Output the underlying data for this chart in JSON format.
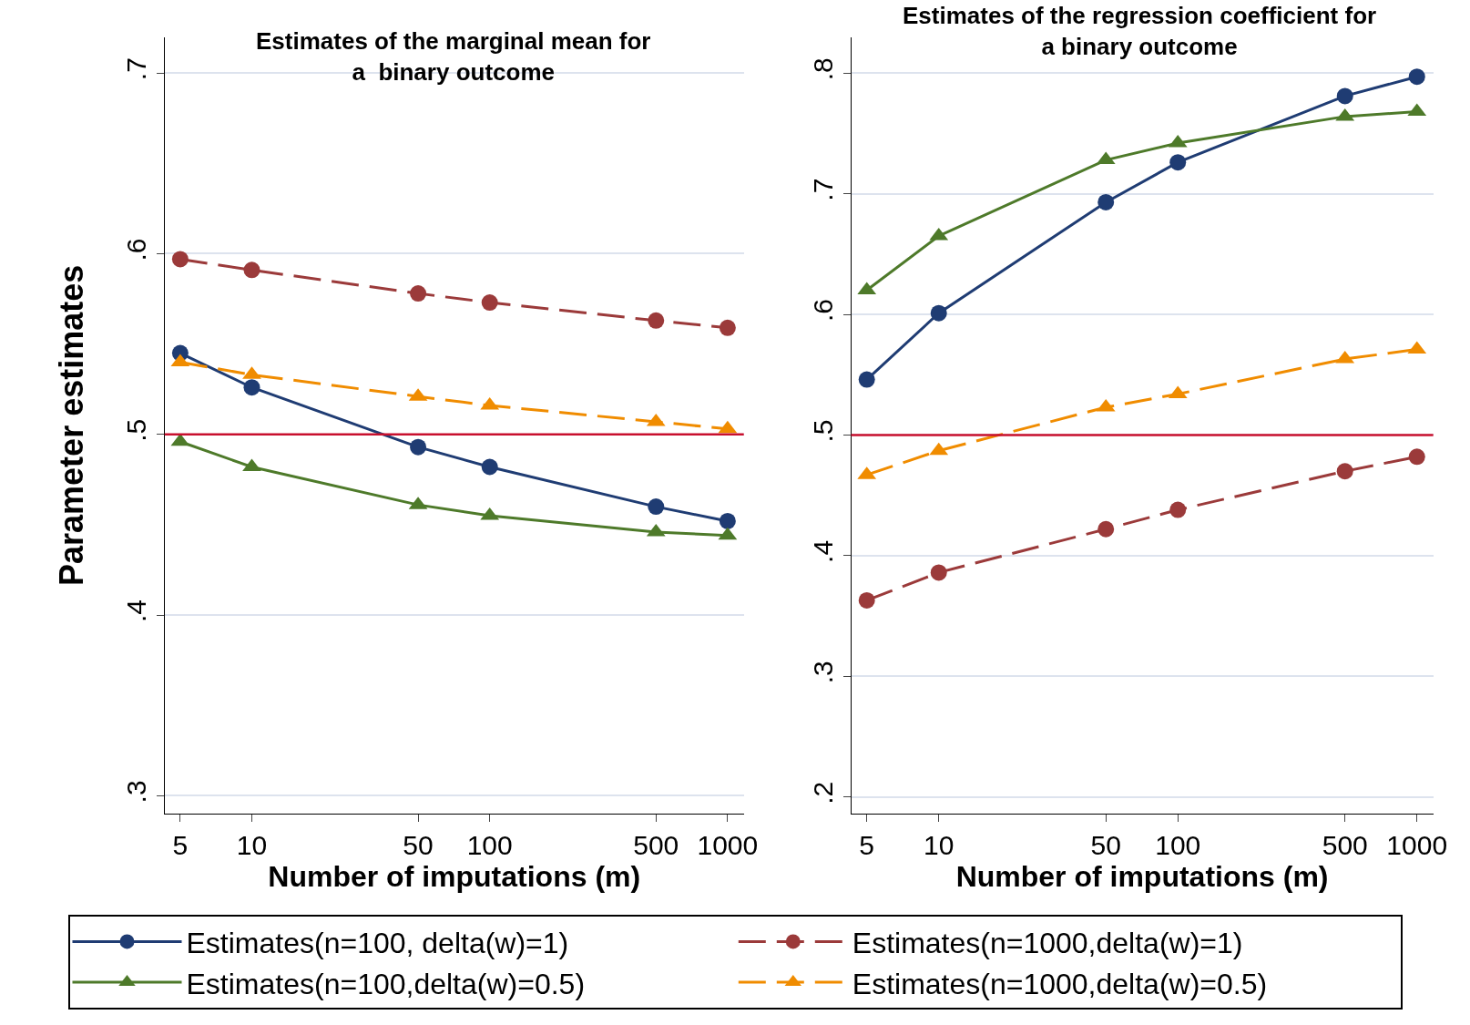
{
  "chart_data": [
    {
      "type": "line",
      "title": "Estimates of the marginal mean for a  binary outcome",
      "xlabel": "Number of imputations (m)",
      "ylabel": "Parameter estimates",
      "x": [
        5,
        10,
        50,
        100,
        500,
        1000
      ],
      "log": "x",
      "xlim": [
        4.3,
        1170
      ],
      "xticks": [
        5,
        10,
        50,
        100,
        500,
        1000
      ],
      "ylim": [
        0.29,
        0.72
      ],
      "yticks": [
        {
          "value": 0.3,
          "label": ".3"
        },
        {
          "value": 0.4,
          "label": ".4"
        },
        {
          "value": 0.5,
          "label": ".5"
        },
        {
          "value": 0.6,
          "label": ".6"
        },
        {
          "value": 0.7,
          "label": ".7"
        }
      ],
      "grid": "y",
      "legend": "bottom",
      "ref_lines": [
        {
          "axis": "y",
          "value": 0.5,
          "color": "#c8102e"
        }
      ],
      "series": [
        {
          "name": "Estimates(n=100, delta(w)=1)",
          "color": "#1f3c73",
          "marker": "circle",
          "line_style": "solid",
          "values": [
            0.545,
            0.526,
            0.493,
            0.482,
            0.46,
            0.452
          ]
        },
        {
          "name": "Estimates(n=1000,delta(w)=1)",
          "color": "#9b3a3a",
          "marker": "circle",
          "line_style": "dashed",
          "values": [
            0.597,
            0.591,
            0.578,
            0.573,
            0.563,
            0.559
          ]
        },
        {
          "name": "Estimates(n=100,delta(w)=0.5)",
          "color": "#4e7a2a",
          "marker": "triangle",
          "line_style": "solid",
          "values": [
            0.496,
            0.482,
            0.461,
            0.455,
            0.446,
            0.444
          ]
        },
        {
          "name": "Estimates(n=1000,delta(w)=0.5)",
          "color": "#f08c00",
          "marker": "triangle",
          "line_style": "dashed",
          "values": [
            0.54,
            0.533,
            0.521,
            0.516,
            0.507,
            0.503
          ]
        }
      ]
    },
    {
      "type": "line",
      "title": "Estimates of the regression coefficient for a binary outcome",
      "xlabel": "Number of imputations (m)",
      "x": [
        5,
        10,
        50,
        100,
        500,
        1000
      ],
      "log": "x",
      "xlim": [
        4.3,
        1170
      ],
      "xticks": [
        5,
        10,
        50,
        100,
        500,
        1000
      ],
      "ylim": [
        0.186,
        0.83
      ],
      "yticks": [
        {
          "value": 0.2,
          "label": ".2"
        },
        {
          "value": 0.3,
          "label": ".3"
        },
        {
          "value": 0.4,
          "label": ".4"
        },
        {
          "value": 0.5,
          "label": ".5"
        },
        {
          "value": 0.6,
          "label": ".6"
        },
        {
          "value": 0.7,
          "label": ".7"
        },
        {
          "value": 0.8,
          "label": ".8"
        }
      ],
      "grid": "y",
      "ref_lines": [
        {
          "axis": "y",
          "value": 0.5,
          "color": "#c8102e"
        }
      ],
      "series": [
        {
          "color": "#1f3c73",
          "marker": "circle",
          "line_style": "solid",
          "values": [
            0.546,
            0.601,
            0.693,
            0.726,
            0.781,
            0.797
          ]
        },
        {
          "color": "#9b3a3a",
          "marker": "circle",
          "line_style": "dashed",
          "values": [
            0.363,
            0.386,
            0.422,
            0.438,
            0.47,
            0.482
          ]
        },
        {
          "color": "#4e7a2a",
          "marker": "triangle",
          "line_style": "solid",
          "values": [
            0.62,
            0.665,
            0.728,
            0.742,
            0.764,
            0.768
          ]
        },
        {
          "color": "#f08c00",
          "marker": "triangle",
          "line_style": "dashed",
          "values": [
            0.467,
            0.487,
            0.523,
            0.534,
            0.563,
            0.571
          ]
        }
      ]
    }
  ]
}
